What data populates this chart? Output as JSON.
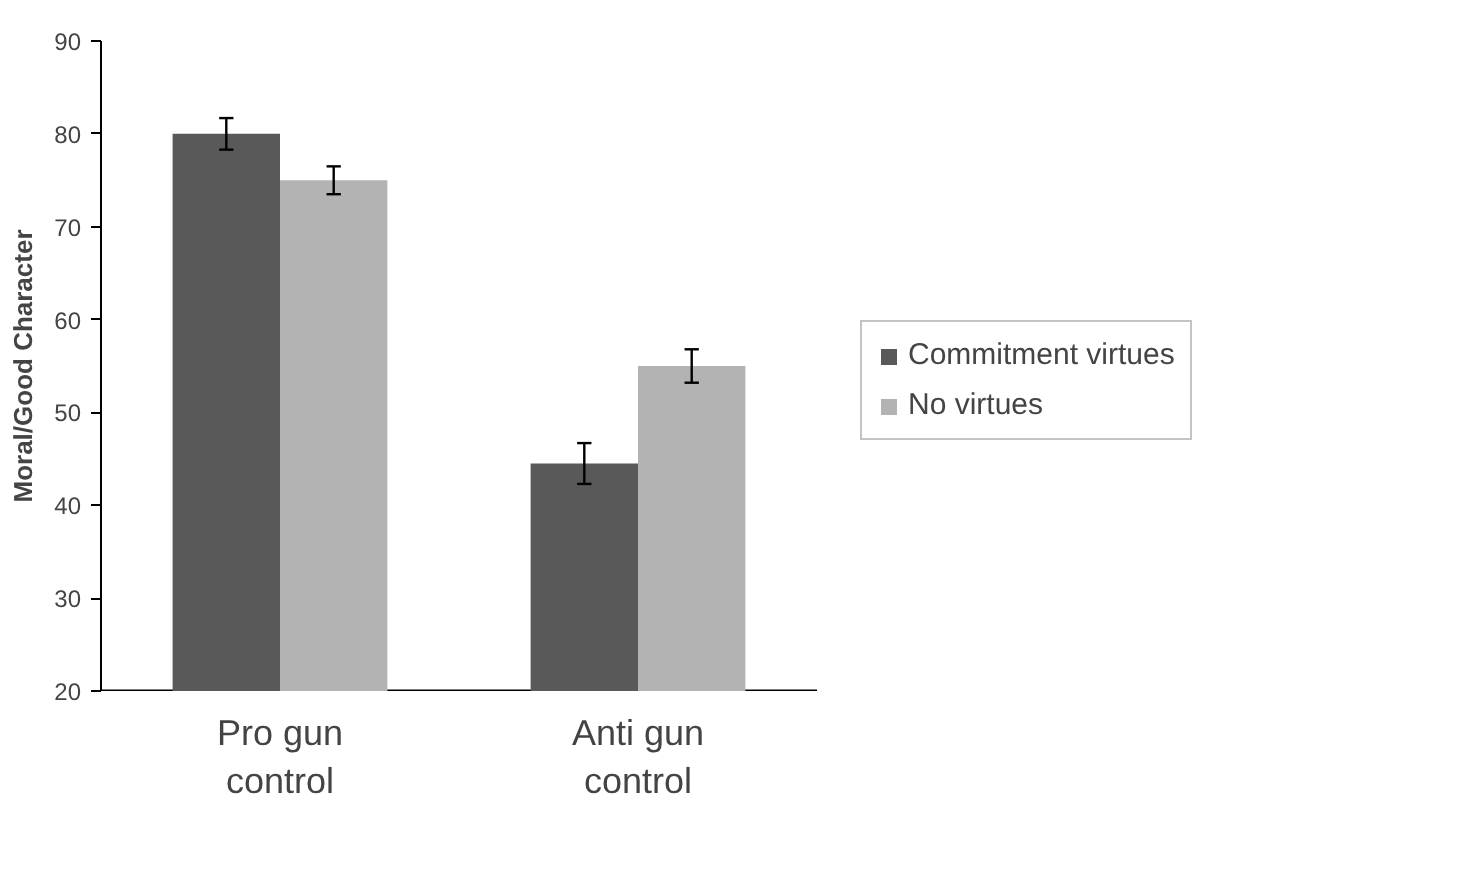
{
  "chart_data": {
    "type": "bar",
    "ylabel": "Moral/Good Character",
    "categories": [
      "Pro gun control",
      "Anti gun control"
    ],
    "series": [
      {
        "name": "Commitment virtues",
        "color": "#595959",
        "values": [
          80,
          44.5
        ],
        "errors": [
          1.7,
          2.2
        ]
      },
      {
        "name": "No virtues",
        "color": "#b3b3b3",
        "values": [
          75,
          55
        ],
        "errors": [
          1.5,
          1.8
        ]
      }
    ],
    "ylim": [
      20,
      90
    ],
    "yticks": [
      20,
      30,
      40,
      50,
      60,
      70,
      80,
      90
    ],
    "grid": false,
    "legend": "right"
  }
}
